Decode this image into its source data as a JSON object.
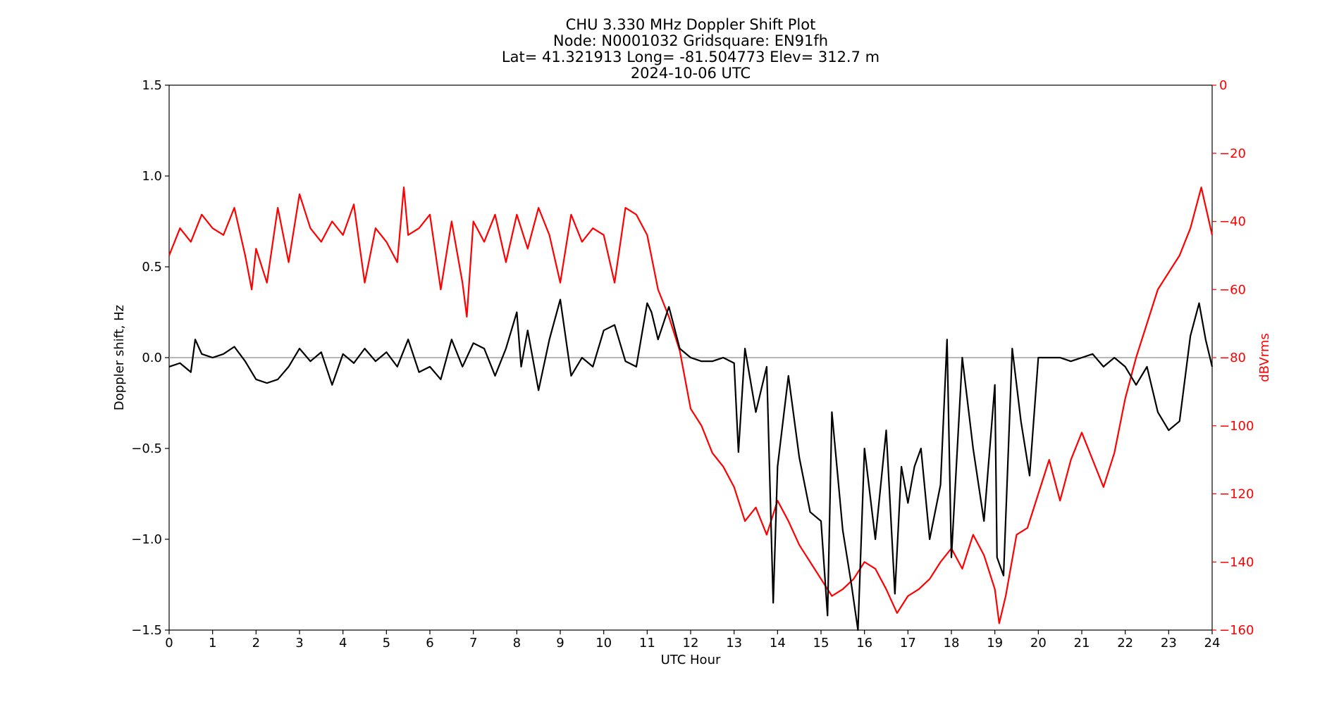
{
  "chart_data": {
    "type": "line",
    "title_lines": [
      "CHU 3.330 MHz Doppler Shift Plot",
      "Node:  N0001032      Gridsquare:  EN91fh",
      "Lat= 41.321913    Long= -81.504773    Elev= 312.7 m",
      "2024-10-06  UTC"
    ],
    "xlabel": "UTC Hour",
    "ylabel_left": "Doppler shift, Hz",
    "ylabel_right": "dBVrms",
    "xlim": [
      0,
      24
    ],
    "ylim_left": [
      -1.5,
      1.5
    ],
    "ylim_right": [
      -160,
      0
    ],
    "xticks": [
      "0",
      "1",
      "2",
      "3",
      "4",
      "5",
      "6",
      "7",
      "8",
      "9",
      "10",
      "11",
      "12",
      "13",
      "14",
      "15",
      "16",
      "17",
      "18",
      "19",
      "20",
      "21",
      "22",
      "23",
      "24"
    ],
    "yticks_left": [
      "1.5",
      "1.0",
      "0.5",
      "0.0",
      "−0.5",
      "−1.0",
      "−1.5"
    ],
    "yticks_right": [
      "0",
      "−20",
      "−40",
      "−60",
      "−80",
      "−100",
      "−120",
      "−140",
      "−160"
    ],
    "zero_line": 0.0,
    "colors": {
      "doppler": "#000000",
      "power": "#ff0000",
      "zero_line": "#a0a0a0"
    },
    "series": [
      {
        "axis": "left",
        "color": "#000000",
        "x": [
          0,
          0.25,
          0.5,
          0.6,
          0.75,
          1,
          1.25,
          1.5,
          1.75,
          2,
          2.25,
          2.5,
          2.75,
          3,
          3.25,
          3.5,
          3.75,
          4,
          4.25,
          4.5,
          4.75,
          5,
          5.25,
          5.5,
          5.75,
          6,
          6.25,
          6.5,
          6.75,
          7,
          7.25,
          7.5,
          7.75,
          8,
          8.1,
          8.25,
          8.5,
          8.75,
          9,
          9.25,
          9.5,
          9.75,
          10,
          10.25,
          10.5,
          10.75,
          11,
          11.1,
          11.25,
          11.5,
          11.75,
          12,
          12.25,
          12.5,
          12.75,
          13,
          13.1,
          13.25,
          13.5,
          13.75,
          13.9,
          14,
          14.25,
          14.5,
          14.75,
          15,
          15.15,
          15.25,
          15.5,
          15.7,
          15.85,
          16,
          16.25,
          16.5,
          16.7,
          16.85,
          17,
          17.15,
          17.3,
          17.5,
          17.75,
          17.9,
          18,
          18.25,
          18.5,
          18.75,
          19,
          19.05,
          19.2,
          19.4,
          19.6,
          19.8,
          20,
          20.25,
          20.5,
          20.75,
          21,
          21.25,
          21.5,
          21.75,
          22,
          22.25,
          22.5,
          22.75,
          23,
          23.25,
          23.5,
          23.7,
          23.85,
          24
        ],
        "y": [
          -0.05,
          -0.03,
          -0.08,
          0.1,
          0.02,
          0.0,
          0.02,
          0.06,
          -0.02,
          -0.12,
          -0.14,
          -0.12,
          -0.05,
          0.05,
          -0.02,
          0.03,
          -0.15,
          0.02,
          -0.03,
          0.05,
          -0.02,
          0.03,
          -0.05,
          0.1,
          -0.08,
          -0.05,
          -0.12,
          0.1,
          -0.05,
          0.08,
          0.05,
          -0.1,
          0.05,
          0.25,
          -0.05,
          0.15,
          -0.18,
          0.1,
          0.32,
          -0.1,
          0.0,
          -0.05,
          0.15,
          0.18,
          -0.02,
          -0.05,
          0.3,
          0.25,
          0.1,
          0.28,
          0.05,
          0.0,
          -0.02,
          -0.02,
          0.0,
          -0.03,
          -0.52,
          0.05,
          -0.3,
          -0.05,
          -1.35,
          -0.6,
          -0.1,
          -0.55,
          -0.85,
          -0.9,
          -1.42,
          -0.3,
          -0.95,
          -1.25,
          -1.5,
          -0.5,
          -1.0,
          -0.4,
          -1.3,
          -0.6,
          -0.8,
          -0.6,
          -0.5,
          -1.0,
          -0.7,
          0.1,
          -1.1,
          0.0,
          -0.5,
          -0.9,
          -0.15,
          -1.1,
          -1.2,
          0.05,
          -0.35,
          -0.65,
          0.0,
          0.0,
          0.0,
          -0.02,
          0.0,
          0.02,
          -0.05,
          0.0,
          -0.05,
          -0.15,
          -0.05,
          -0.3,
          -0.4,
          -0.35,
          0.12,
          0.3,
          0.1,
          -0.05
        ]
      },
      {
        "axis": "right",
        "color": "#ff0000",
        "x": [
          0,
          0.25,
          0.5,
          0.75,
          1,
          1.25,
          1.5,
          1.75,
          1.9,
          2,
          2.25,
          2.5,
          2.75,
          3,
          3.25,
          3.5,
          3.75,
          4,
          4.25,
          4.5,
          4.75,
          5,
          5.25,
          5.4,
          5.5,
          5.75,
          6,
          6.25,
          6.5,
          6.75,
          6.85,
          7,
          7.25,
          7.5,
          7.75,
          8,
          8.25,
          8.5,
          8.75,
          9,
          9.25,
          9.5,
          9.75,
          10,
          10.25,
          10.5,
          10.75,
          11,
          11.25,
          11.5,
          11.75,
          12,
          12.25,
          12.5,
          12.75,
          13,
          13.25,
          13.5,
          13.75,
          14,
          14.25,
          14.5,
          14.75,
          15,
          15.25,
          15.5,
          15.75,
          16,
          16.25,
          16.5,
          16.75,
          17,
          17.25,
          17.5,
          17.75,
          18,
          18.25,
          18.5,
          18.75,
          19,
          19.1,
          19.25,
          19.5,
          19.75,
          20,
          20.25,
          20.5,
          20.75,
          21,
          21.25,
          21.5,
          21.75,
          22,
          22.25,
          22.5,
          22.75,
          23,
          23.25,
          23.5,
          23.75,
          24
        ],
        "y": [
          -50,
          -42,
          -46,
          -38,
          -42,
          -44,
          -36,
          -50,
          -60,
          -48,
          -58,
          -36,
          -52,
          -32,
          -42,
          -46,
          -40,
          -44,
          -35,
          -58,
          -42,
          -46,
          -52,
          -30,
          -44,
          -42,
          -38,
          -60,
          -40,
          -58,
          -68,
          -40,
          -46,
          -38,
          -52,
          -38,
          -48,
          -36,
          -44,
          -58,
          -38,
          -46,
          -42,
          -44,
          -58,
          -36,
          -38,
          -44,
          -60,
          -68,
          -78,
          -95,
          -100,
          -108,
          -112,
          -118,
          -128,
          -124,
          -132,
          -122,
          -128,
          -135,
          -140,
          -145,
          -150,
          -148,
          -145,
          -140,
          -142,
          -148,
          -155,
          -150,
          -148,
          -145,
          -140,
          -136,
          -142,
          -132,
          -138,
          -148,
          -158,
          -150,
          -132,
          -130,
          -120,
          -110,
          -122,
          -110,
          -102,
          -110,
          -118,
          -108,
          -92,
          -80,
          -70,
          -60,
          -55,
          -50,
          -42,
          -30,
          -44
        ]
      }
    ]
  }
}
